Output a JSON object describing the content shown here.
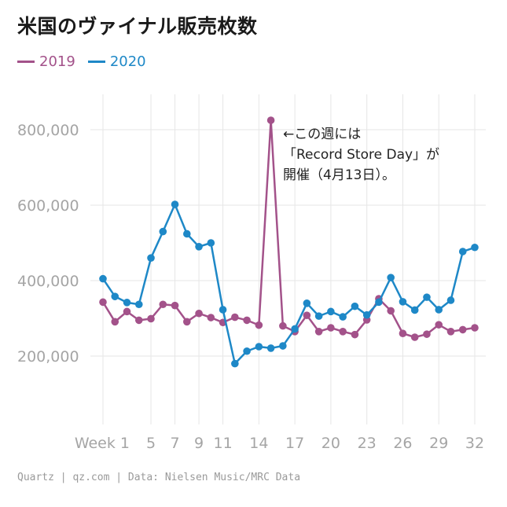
{
  "title": "米国のヴァイナル販売枚数",
  "legend": [
    {
      "name": "2019",
      "color": "#a3528a"
    },
    {
      "name": "2020",
      "color": "#1e88c7"
    }
  ],
  "annotation": "←この週には\n「Record Store Day」が\n開催（4月13日）。",
  "source": "Quartz | qz.com | Data: Nielsen Music/MRC Data",
  "chart_data": {
    "type": "line",
    "x": [
      1,
      2,
      3,
      4,
      5,
      6,
      7,
      8,
      9,
      10,
      11,
      12,
      13,
      14,
      15,
      16,
      17,
      18,
      19,
      20,
      21,
      22,
      23,
      24,
      25,
      26,
      27,
      28,
      29,
      30,
      31,
      32
    ],
    "xticks": [
      1,
      5,
      7,
      9,
      11,
      14,
      17,
      20,
      23,
      26,
      29,
      32
    ],
    "xtick_labels": [
      "Week 1",
      "5",
      "7",
      "9",
      "11",
      "14",
      "17",
      "20",
      "23",
      "26",
      "29",
      "32"
    ],
    "yticks": [
      200000,
      400000,
      600000,
      800000
    ],
    "ytick_labels": [
      "200,000",
      "400,000",
      "600,000",
      "800,000"
    ],
    "ylim": [
      0,
      950000
    ],
    "xlim": [
      1,
      32
    ],
    "grid": true,
    "legend_position": "top-left",
    "series": [
      {
        "name": "2019",
        "color": "#a3528a",
        "values": [
          343000,
          291000,
          318000,
          295000,
          299000,
          337000,
          334000,
          291000,
          313000,
          302000,
          289000,
          303000,
          295000,
          282000,
          825000,
          280000,
          265000,
          308000,
          265000,
          275000,
          265000,
          257000,
          296000,
          352000,
          320000,
          260000,
          250000,
          258000,
          283000,
          265000,
          270000,
          275000
        ]
      },
      {
        "name": "2020",
        "color": "#1e88c7",
        "values": [
          405000,
          358000,
          342000,
          337000,
          460000,
          530000,
          602000,
          524000,
          490000,
          500000,
          323000,
          180000,
          213000,
          225000,
          221000,
          227000,
          272000,
          340000,
          306000,
          318000,
          304000,
          332000,
          309000,
          343000,
          408000,
          344000,
          322000,
          356000,
          323000,
          348000,
          477000,
          488000
        ]
      }
    ]
  }
}
